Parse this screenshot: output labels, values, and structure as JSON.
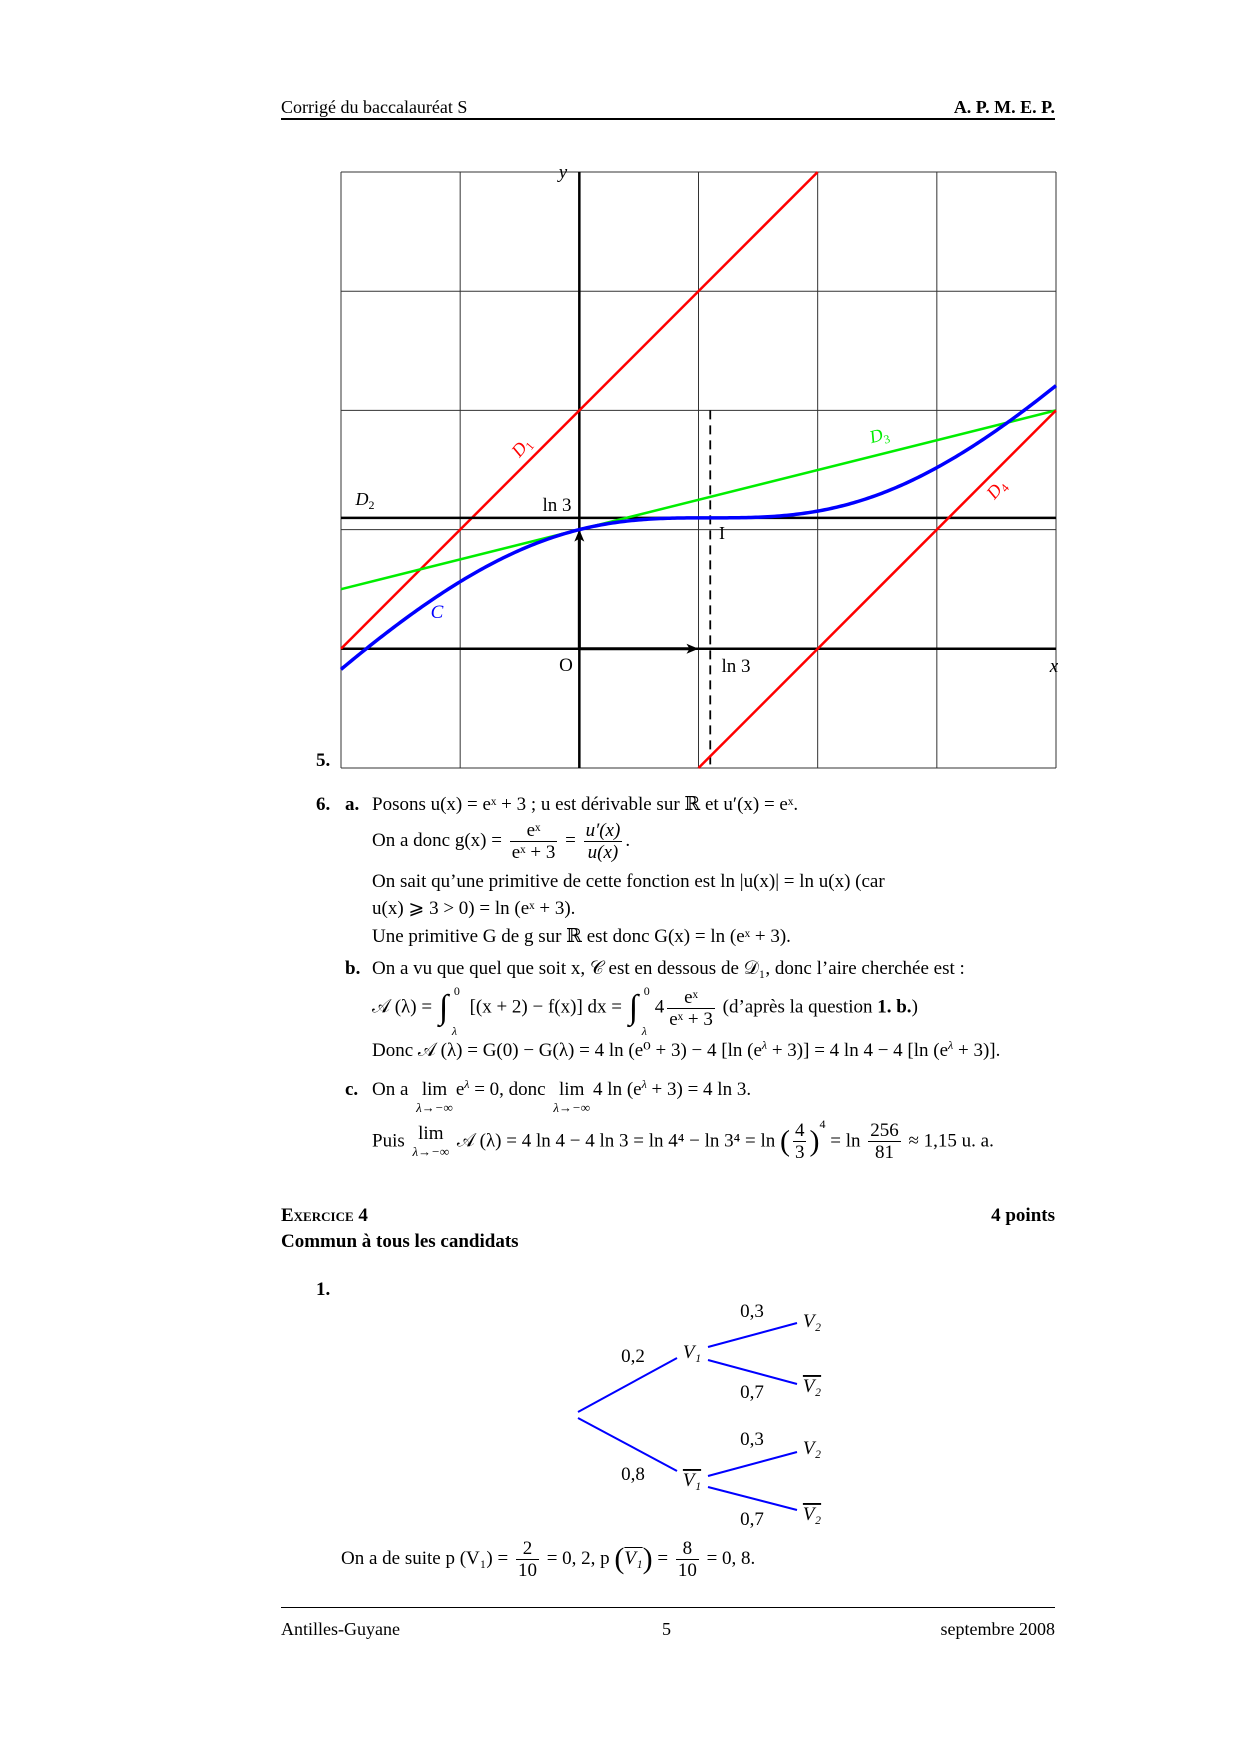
{
  "header": {
    "left": "Corrigé du baccalauréat S",
    "right": "A. P. M. E. P."
  },
  "figure": {
    "question": "5.",
    "x_range": [
      -2,
      4
    ],
    "y_range": [
      -1,
      4
    ],
    "lines": {
      "D1": {
        "slope": 1,
        "intercept": 2,
        "color": "#ff0000"
      },
      "D2": {
        "slope": 0,
        "intercept": 1.0986,
        "color": "#000000"
      },
      "D3": {
        "slope": 0.25,
        "intercept": 1,
        "color": "#00ee00"
      },
      "D4": {
        "slope": 1,
        "intercept": -2,
        "color": "#ff0000"
      }
    },
    "curve_color": "#0000ff",
    "labels": {
      "y": "y",
      "x": "x",
      "origin": "O",
      "ln3_y": "ln 3",
      "ln3_x": "ln 3",
      "I": "I",
      "D1": "D1",
      "D2": "D2",
      "D3": "D3",
      "D4": "D4",
      "C": "C"
    }
  },
  "q6": {
    "number": "6.",
    "a": {
      "label": "a.",
      "line1": "Posons u(x) = eˣ + 3 ; u est dérivable sur ℝ et u′(x) = eˣ.",
      "line2_prefix": "On a donc g(x) =",
      "frac1": {
        "num": "eˣ",
        "den": "eˣ + 3"
      },
      "eq": "=",
      "frac2": {
        "num": "u′(x)",
        "den": "u(x)"
      },
      "line2_suffix": ".",
      "line3": "On sait qu’une primitive de cette fonction est ln |u(x)| = ln u(x) (car",
      "line4": "u(x) ⩾ 3 > 0) = ln (eˣ + 3).",
      "line5": "Une primitive G de g sur ℝ est donc G(x) = ln (eˣ + 3)."
    },
    "b": {
      "label": "b.",
      "line1": "On a vu que quel que soit x, 𝒞 est en dessous de 𝒟₁, donc l’aire cherchée est :",
      "line2_a": "𝒜 (λ) =",
      "int_upper": "0",
      "int_lower": "λ",
      "int_sign": "∫",
      "line2_b": "[(x + 2) − f(x)] dx =",
      "line2_c": "4",
      "frac": {
        "num": "eˣ",
        "den": "eˣ + 3"
      },
      "line2_d": " (d’après la question ",
      "line2_ref": "1. b.",
      "line2_e": ")",
      "line3_a": "Donc 𝒜 (λ) = G(0) − G(λ) = 4 ln (e⁰ + 3) − 4 [ln (e",
      "lambda": "λ",
      "line3_b": " + 3)] = 4 ln 4 − 4 [ln (e",
      "line3_c": " + 3)]."
    },
    "c": {
      "label": "c.",
      "line1_a": "On a",
      "lim": "lim",
      "lim_sub": "λ→−∞",
      "line1_b": "e",
      "line1_c": " = 0, donc",
      "line1_d": "4 ln (e",
      "line1_e": " + 3) = 4 ln 3.",
      "line2_a": "Puis",
      "line2_b": "𝒜 (λ) = 4 ln 4 − 4 ln 3 = ln 4⁴ − ln 3⁴ = ln",
      "paren_frac": {
        "num": "4",
        "den": "3",
        "exp": "4"
      },
      "line2_c": "= ln",
      "frac": {
        "num": "256",
        "den": "81"
      },
      "line2_d": "≈ 1,15 u. a."
    }
  },
  "exercise4": {
    "title": "Exercice 4",
    "points": "4 points",
    "subtitle": "Commun à tous les candidats",
    "q1": "1.",
    "tree": {
      "color": "#0000ff",
      "V1": "V₁",
      "V1bar": "V₁",
      "V2": "V₂",
      "V2bar": "V₂",
      "p_V1": "0,2",
      "p_V1bar": "0,8",
      "p_V2_given_V1": "0,3",
      "p_V2bar_given_V1": "0,7",
      "p_V2_given_V1bar": "0,3",
      "p_V2bar_given_V1bar": "0,7"
    },
    "final": {
      "a": "On a de suite p (V₁) =",
      "frac1": {
        "num": "2",
        "den": "10"
      },
      "b": "= 0, 2,  p",
      "v1bar": "V₁",
      "c": "=",
      "frac2": {
        "num": "8",
        "den": "10"
      },
      "d": "= 0, 8."
    }
  },
  "footer": {
    "left": "Antilles-Guyane",
    "center": "5",
    "right": "septembre 2008"
  }
}
